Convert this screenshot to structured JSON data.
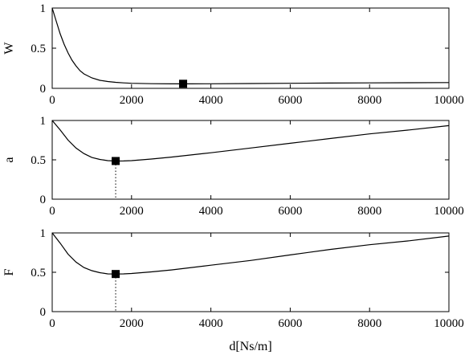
{
  "chart_data": [
    {
      "type": "line",
      "ylabel": "W",
      "xlabel": "",
      "xlim": [
        0,
        10000
      ],
      "ylim": [
        0,
        1
      ],
      "x_ticks": [
        "0",
        "2000",
        "4000",
        "6000",
        "8000",
        "10000"
      ],
      "y_ticks": [
        "0",
        "0.5",
        "1"
      ],
      "series": [
        {
          "x": [
            0,
            100,
            200,
            300,
            400,
            500,
            600,
            700,
            800,
            1000,
            1200,
            1400,
            1600,
            1800,
            2000,
            2500,
            3000,
            3500,
            4000,
            5000,
            6000,
            7000,
            8000,
            9000,
            10000
          ],
          "y": [
            1.0,
            0.84,
            0.68,
            0.55,
            0.44,
            0.35,
            0.28,
            0.22,
            0.18,
            0.13,
            0.1,
            0.085,
            0.075,
            0.068,
            0.063,
            0.058,
            0.056,
            0.056,
            0.057,
            0.06,
            0.063,
            0.066,
            0.068,
            0.07,
            0.072
          ]
        }
      ],
      "markers": [
        {
          "x": 3300,
          "y": 0.057,
          "dropline": false
        }
      ]
    },
    {
      "type": "line",
      "ylabel": "a",
      "xlabel": "",
      "xlim": [
        0,
        10000
      ],
      "ylim": [
        0,
        1
      ],
      "x_ticks": [
        "0",
        "2000",
        "4000",
        "6000",
        "8000",
        "10000"
      ],
      "y_ticks": [
        "0",
        "0.5",
        "1"
      ],
      "series": [
        {
          "x": [
            0,
            200,
            400,
            600,
            800,
            1000,
            1200,
            1400,
            1600,
            1800,
            2000,
            2500,
            3000,
            4000,
            5000,
            6000,
            7000,
            8000,
            9000,
            10000
          ],
          "y": [
            1.0,
            0.88,
            0.75,
            0.65,
            0.58,
            0.53,
            0.505,
            0.49,
            0.485,
            0.486,
            0.49,
            0.51,
            0.535,
            0.59,
            0.65,
            0.71,
            0.77,
            0.83,
            0.88,
            0.935
          ]
        }
      ],
      "markers": [
        {
          "x": 1600,
          "y": 0.485,
          "dropline": true
        }
      ]
    },
    {
      "type": "line",
      "ylabel": "F",
      "xlabel": "d[Ns/m]",
      "xlim": [
        0,
        10000
      ],
      "ylim": [
        0,
        1
      ],
      "x_ticks": [
        "0",
        "2000",
        "4000",
        "6000",
        "8000",
        "10000"
      ],
      "y_ticks": [
        "0",
        "0.5",
        "1"
      ],
      "series": [
        {
          "x": [
            0,
            200,
            400,
            600,
            800,
            1000,
            1200,
            1400,
            1600,
            1800,
            2000,
            2500,
            3000,
            4000,
            5000,
            6000,
            7000,
            8000,
            9000,
            10000
          ],
          "y": [
            1.0,
            0.87,
            0.73,
            0.63,
            0.56,
            0.52,
            0.495,
            0.48,
            0.478,
            0.48,
            0.485,
            0.505,
            0.53,
            0.59,
            0.65,
            0.72,
            0.79,
            0.85,
            0.9,
            0.96
          ]
        }
      ],
      "markers": [
        {
          "x": 1600,
          "y": 0.478,
          "dropline": true
        }
      ]
    }
  ]
}
